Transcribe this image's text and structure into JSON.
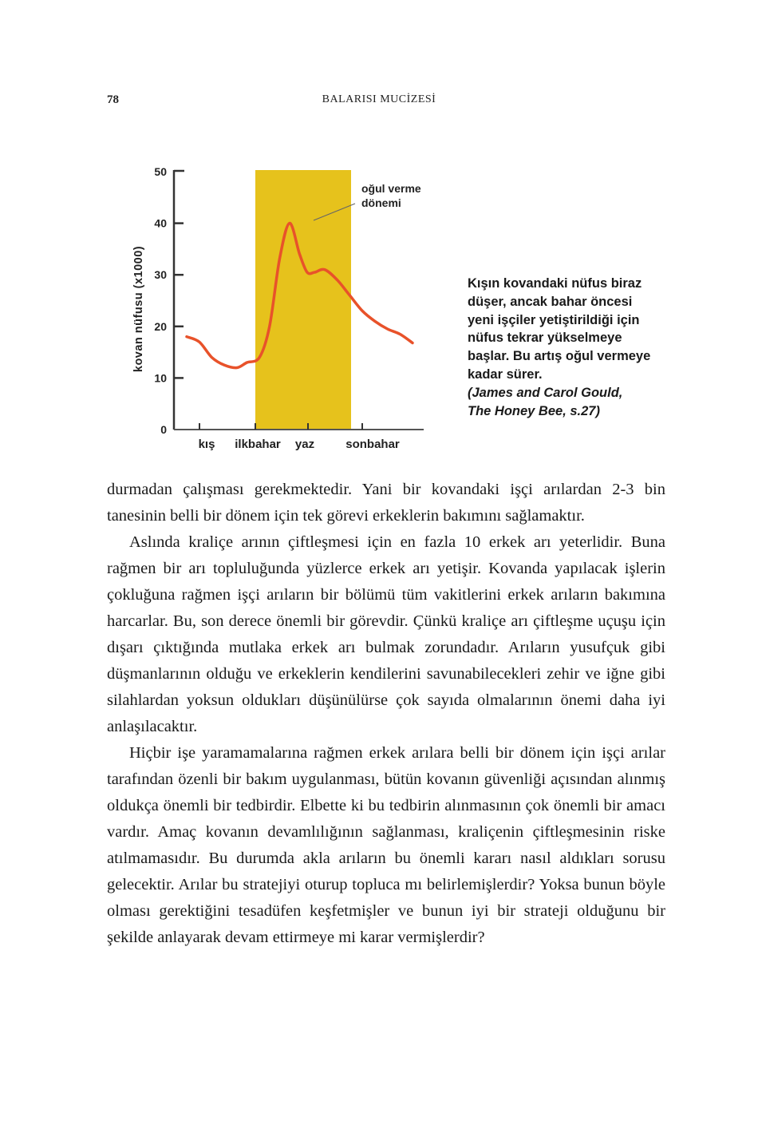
{
  "header": {
    "page_number": "78",
    "running_title": "BALARISI MUCİZESİ"
  },
  "chart_data": {
    "type": "line",
    "ylabel": "kovan nüfusu (x1000)",
    "ylim": [
      0,
      50
    ],
    "yticks": [
      "0",
      "10",
      "20",
      "30",
      "40",
      "50"
    ],
    "seasons": [
      "kış",
      "ilkbahar",
      "yaz",
      "sonbahar"
    ],
    "highlight": {
      "label": "oğul verme dönemi",
      "label_lines": [
        "oğul verme",
        "dönemi"
      ],
      "color": "#e6c21c"
    },
    "series": [
      {
        "color": "#e8522a",
        "x": [
          0,
          0.5,
          1.0,
          1.5,
          2.0,
          2.4,
          2.9,
          3.3,
          3.7,
          4.1,
          4.5,
          4.8,
          5.1,
          5.5,
          6.0,
          6.5,
          7.0,
          7.5,
          8.0,
          8.5,
          9.0
        ],
        "values": [
          18,
          17,
          14,
          12.5,
          12,
          13,
          14,
          20,
          33,
          40,
          34,
          30.5,
          30.5,
          31,
          29,
          26,
          23,
          21,
          19.5,
          18.5,
          16.8
        ]
      }
    ]
  },
  "caption": {
    "text": "Kışın kovandaki nüfus biraz düşer, ancak bahar öncesi yeni işçiler yetiştirildiği için nüfus tekrar yükselmeye başlar. Bu artış oğul vermeye kadar sürer.",
    "source_line1": "(James and Carol Gould,",
    "source_line2": "The Honey Bee, s.27)"
  },
  "body": {
    "p1": "durmadan çalışması gerekmektedir. Yani bir kovandaki işçi arılardan 2-3 bin tanesinin belli bir dönem için tek görevi erkeklerin bakımını sağlamaktır.",
    "p2": "Aslında kraliçe arının çiftleşmesi için en fazla 10 erkek arı yeterlidir. Buna rağmen bir arı topluluğunda yüzlerce erkek arı yetişir. Kovanda yapılacak işlerin çokluğuna rağmen işçi arıların bir bölümü tüm vakitlerini erkek arıların bakımına harcarlar. Bu, son derece önemli bir görevdir. Çünkü kraliçe arı çiftleşme uçuşu için dışarı çıktığında mutlaka erkek arı bulmak zorundadır. Arıların yusufçuk gibi düşmanlarının olduğu ve erkeklerin kendilerini savunabilecekleri zehir ve iğne gibi silahlardan yoksun oldukları düşünülürse çok sayıda olmalarının önemi daha iyi anlaşılacaktır.",
    "p3": "Hiçbir işe yaramamalarına rağmen erkek arılara belli bir dönem için işçi arılar tarafından özenli bir bakım uygulanması, bütün kovanın güvenliği açısından alınmış oldukça önemli bir tedbirdir. Elbette ki bu tedbirin alınmasının çok önemli bir amacı vardır. Amaç kovanın devamlılığının sağlanması, kraliçenin çiftleşmesinin riske atılmamasıdır. Bu durumda akla arıların bu önemli kararı nasıl aldıkları sorusu gelecektir. Arılar bu stratejiyi oturup topluca mı belirlemişlerdir? Yoksa bunun böyle olması gerektiğini tesadüfen keşfetmişler ve bunun iyi bir strateji olduğunu bir şekilde anlayarak devam ettirmeye mi karar vermişlerdir?"
  }
}
